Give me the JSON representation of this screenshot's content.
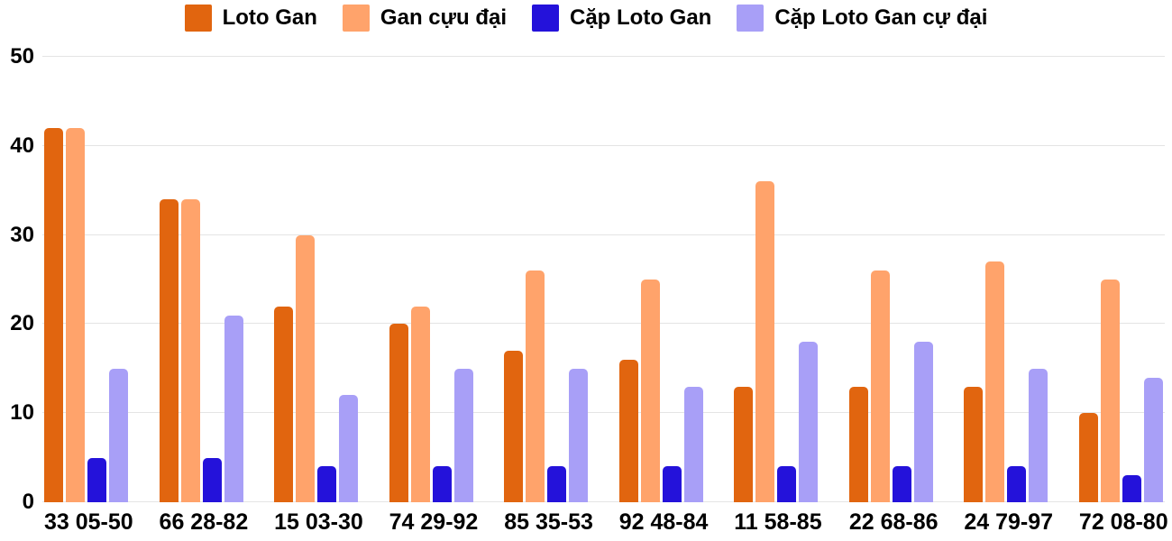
{
  "chart_data": {
    "type": "bar",
    "title": "",
    "xlabel": "",
    "ylabel": "",
    "categories": [
      "33 05-50",
      "66 28-82",
      "15 03-30",
      "74 29-92",
      "85 35-53",
      "92 48-84",
      "11 58-85",
      "22 68-86",
      "24 79-97",
      "72 08-80"
    ],
    "series": [
      {
        "name": "Loto Gan",
        "color": "#e1650f",
        "values": [
          42,
          34,
          22,
          20,
          17,
          16,
          13,
          13,
          13,
          10
        ]
      },
      {
        "name": "Gan cựu đại",
        "color": "#ffa36b",
        "values": [
          42,
          34,
          30,
          22,
          26,
          25,
          36,
          26,
          27,
          25
        ]
      },
      {
        "name": "Cặp Loto Gan",
        "color": "#2412da",
        "values": [
          5,
          5,
          4,
          4,
          4,
          4,
          4,
          4,
          4,
          3
        ]
      },
      {
        "name": "Cặp Loto Gan cự đại",
        "color": "#a89ff7",
        "values": [
          15,
          21,
          12,
          15,
          15,
          13,
          18,
          18,
          15,
          14
        ]
      }
    ],
    "ylim": [
      0,
      50
    ],
    "yticks": [
      0,
      10,
      20,
      30,
      40,
      50
    ],
    "grid": true,
    "legend_position": "top",
    "colors": {
      "grid": "#e4e4e4",
      "text": "#000000",
      "background": "#ffffff"
    }
  }
}
